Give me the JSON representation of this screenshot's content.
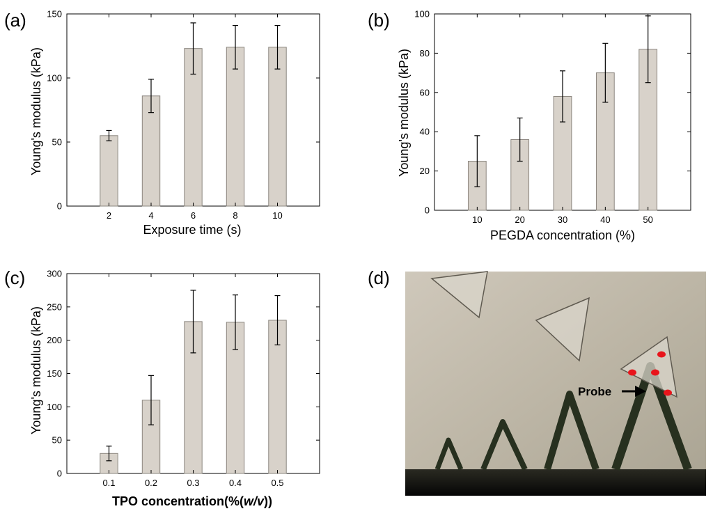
{
  "colors": {
    "bar_fill": "#d8d2ca",
    "bar_stroke": "#8a857e",
    "axis": "#000000",
    "marker": "#e8141b"
  },
  "chart_data": [
    {
      "panel": "(a)",
      "type": "bar",
      "categories": [
        "2",
        "4",
        "6",
        "8",
        "10"
      ],
      "values": [
        55,
        86,
        123,
        124,
        124
      ],
      "errors": [
        4,
        13,
        20,
        17,
        17
      ],
      "xlabel": "Exposure time (s)",
      "ylabel": "Young's modulus (kPa)",
      "ylim": [
        0,
        150
      ],
      "yticks": [
        "0",
        "50",
        "100",
        "150"
      ],
      "grid": false
    },
    {
      "panel": "(b)",
      "type": "bar",
      "categories": [
        "10",
        "20",
        "30",
        "40",
        "50"
      ],
      "values": [
        25,
        36,
        58,
        70,
        82
      ],
      "errors": [
        13,
        11,
        13,
        15,
        17
      ],
      "xlabel": "PEGDA concentration (%)",
      "ylabel": "Young's modulus (kPa)",
      "ylim": [
        0,
        100
      ],
      "yticks": [
        "0",
        "20",
        "40",
        "60",
        "80",
        "100"
      ],
      "grid": false
    },
    {
      "panel": "(c)",
      "type": "bar",
      "categories": [
        "0.1",
        "0.2",
        "0.3",
        "0.4",
        "0.5"
      ],
      "values": [
        30,
        110,
        228,
        227,
        230
      ],
      "errors": [
        11,
        37,
        47,
        41,
        37
      ],
      "xlabel_main": "TPO concentration(%(",
      "xlabel_italic": "w/v",
      "xlabel_end": "))",
      "ylabel": "Young's modulus (kPa)",
      "ylim": [
        0,
        300
      ],
      "yticks": [
        "0",
        "50",
        "100",
        "150",
        "200",
        "250",
        "300"
      ],
      "grid": false
    }
  ],
  "micrograph": {
    "panel": "(d)",
    "probe_label": "Probe"
  }
}
